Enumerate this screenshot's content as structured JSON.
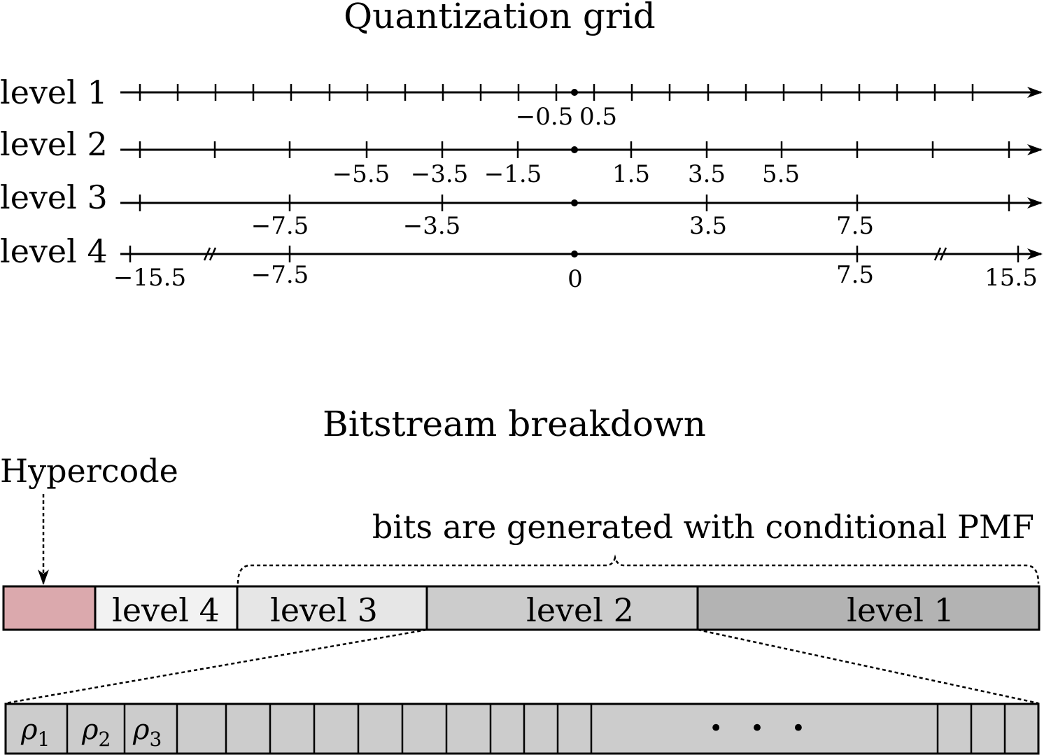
{
  "quantization": {
    "title": "Quantization grid",
    "levels": [
      {
        "label": "level 1",
        "tick_labels": [
          "−0.5",
          "0.5"
        ]
      },
      {
        "label": "level 2",
        "tick_labels": [
          "−5.5",
          "−3.5",
          "−1.5",
          "1.5",
          "3.5",
          "5.5"
        ]
      },
      {
        "label": "level 3",
        "tick_labels": [
          "−7.5",
          "−3.5",
          "3.5",
          "7.5"
        ]
      },
      {
        "label": "level 4",
        "tick_labels": [
          "−15.5",
          "−7.5",
          "0",
          "7.5",
          "15.5"
        ]
      }
    ]
  },
  "bitstream": {
    "title": "Bitstream breakdown",
    "hypercode_label": "Hypercode",
    "brace_label": "bits are generated with conditional PMF",
    "segments": [
      {
        "label": "",
        "color": "#dba9ad"
      },
      {
        "label": "level 4",
        "color": "#f2f2f2"
      },
      {
        "label": "level 3",
        "color": "#e6e6e6"
      },
      {
        "label": "level 2",
        "color": "#cccccc"
      },
      {
        "label": "level 1",
        "color": "#b3b3b3"
      }
    ],
    "detail": {
      "color": "#cccccc",
      "symbols": [
        {
          "base": "ρ",
          "sub": "1"
        },
        {
          "base": "ρ",
          "sub": "2"
        },
        {
          "base": "ρ",
          "sub": "3"
        }
      ],
      "ellipsis": "• • •"
    }
  }
}
